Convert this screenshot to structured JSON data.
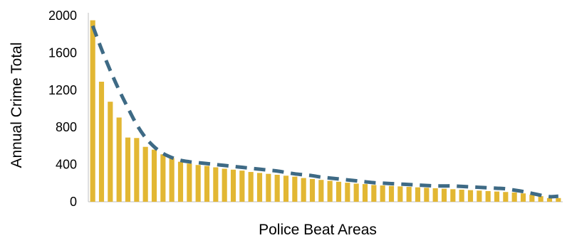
{
  "chart_data": {
    "type": "bar",
    "title": "",
    "xlabel": "Police Beat Areas",
    "ylabel": "Annual Crime Total",
    "ylim": [
      0,
      2000
    ],
    "yticks": [
      "2000",
      "1600",
      "1200",
      "800",
      "400",
      "0"
    ],
    "ytick_values": [
      2000,
      1600,
      1200,
      800,
      400,
      0
    ],
    "grid": false,
    "legend": "none",
    "bar_color": "#E2B733",
    "trend_color": "#3E6A85",
    "trend_style": "dashed",
    "series": [
      {
        "type": "bar",
        "values": [
          1950,
          1290,
          1075,
          905,
          690,
          685,
          590,
          560,
          510,
          470,
          430,
          410,
          395,
          385,
          370,
          355,
          345,
          335,
          320,
          310,
          300,
          290,
          280,
          270,
          255,
          245,
          235,
          225,
          215,
          205,
          195,
          190,
          180,
          175,
          170,
          165,
          160,
          155,
          150,
          145,
          140,
          135,
          130,
          125,
          120,
          115,
          110,
          105,
          100,
          90,
          75,
          60,
          40,
          40
        ]
      },
      {
        "type": "trend",
        "values": [
          1890,
          1640,
          1410,
          1200,
          1010,
          830,
          690,
          590,
          520,
          475,
          445,
          430,
          420,
          410,
          400,
          390,
          380,
          370,
          360,
          350,
          340,
          330,
          315,
          300,
          290,
          280,
          265,
          255,
          245,
          235,
          225,
          215,
          205,
          200,
          195,
          190,
          185,
          180,
          175,
          170,
          170,
          170,
          165,
          160,
          155,
          150,
          145,
          140,
          125,
          110,
          90,
          70,
          55,
          60
        ]
      }
    ]
  }
}
